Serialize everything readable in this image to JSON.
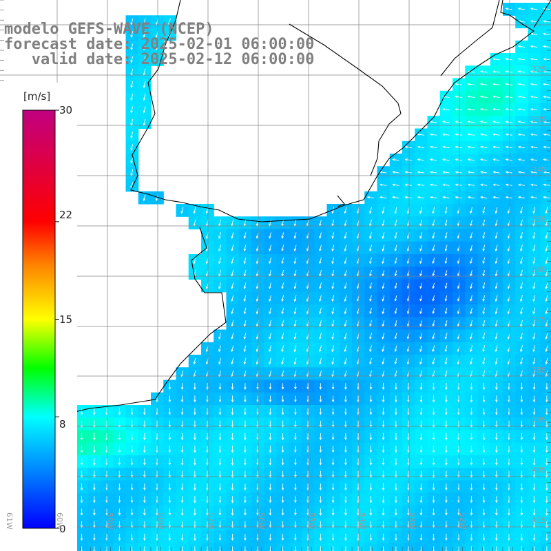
{
  "titles": {
    "line1": "modelo GEFS-WAVE (NCEP)",
    "line2": "forecast date: 2025-02-01 06:00:00",
    "line3": "   valid date: 2025-02-12 06:00:00"
  },
  "colorbar": {
    "unit": "[m/s]",
    "range": [
      0,
      30
    ],
    "ticks": [
      {
        "label": "30",
        "value": 30
      },
      {
        "label": "22",
        "value": 22
      },
      {
        "label": "15",
        "value": 15
      },
      {
        "label": "8",
        "value": 8
      },
      {
        "label": "0",
        "value": 0
      }
    ],
    "colors": [
      "#0000ff",
      "#0080ff",
      "#00ffff",
      "#00ff00",
      "#ffff00",
      "#ff8000",
      "#ff0000",
      "#c00080"
    ]
  },
  "lat_labels": [
    "32S",
    "33S",
    "34S",
    "35S",
    "36S",
    "37S",
    "38S",
    "39S",
    "40S",
    "41S"
  ],
  "lon_labels": [
    "61W",
    "60W",
    "59W",
    "58W",
    "57W",
    "56W",
    "55W",
    "54W",
    "53W",
    "52W"
  ],
  "map": {
    "land_color": "#ffffff",
    "coastline_color": "#000000",
    "grid_color": "#808080",
    "arrow_color": "#ffffff"
  }
}
